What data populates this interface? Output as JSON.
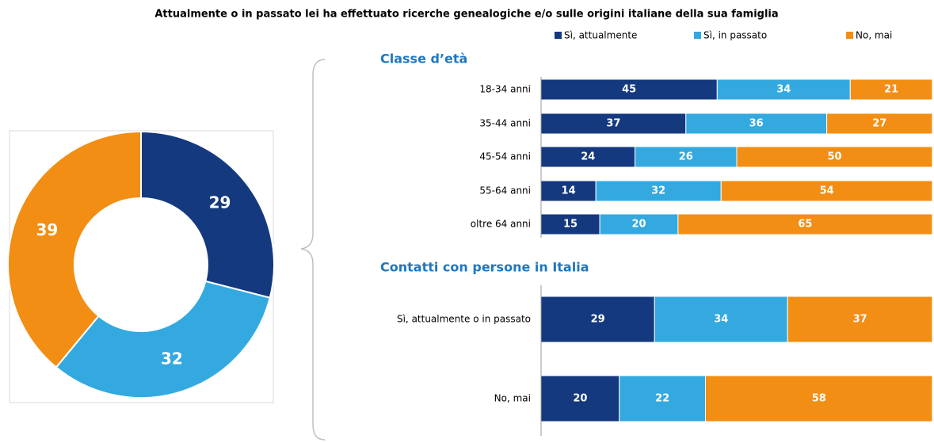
{
  "title": "Attualmente o in passato lei ha effettuato ricerche genealogiche e/o sulle origini italiane della sua famiglia",
  "chart_data": [
    {
      "type": "donut",
      "values": [
        29,
        32,
        39
      ],
      "colors": [
        "#14397f",
        "#33a9e0",
        "#f28e13"
      ]
    },
    {
      "type": "stacked-bar",
      "title": "Classe d’età",
      "categories": [
        "18-34 anni",
        "35-44 anni",
        "45-54 anni",
        "55-64 anni",
        "oltre 64 anni"
      ],
      "xlim": [
        0,
        100
      ],
      "series": [
        {
          "name": "Sì, attualmente",
          "color": "#14397f",
          "values": [
            45,
            37,
            24,
            14,
            15
          ]
        },
        {
          "name": "Sì, in passato",
          "color": "#33a9e0",
          "values": [
            34,
            36,
            26,
            32,
            20
          ]
        },
        {
          "name": "No, mai",
          "color": "#f28e13",
          "values": [
            21,
            27,
            50,
            54,
            65
          ]
        }
      ]
    },
    {
      "type": "stacked-bar",
      "title": "Contatti con persone in Italia",
      "categories": [
        "Sì, attualmente o in passato",
        "No, mai"
      ],
      "xlim": [
        0,
        100
      ],
      "series": [
        {
          "color": "#14397f",
          "values": [
            29,
            20
          ]
        },
        {
          "color": "#33a9e0",
          "values": [
            34,
            22
          ]
        },
        {
          "color": "#f28e13",
          "values": [
            37,
            58
          ]
        }
      ]
    }
  ]
}
